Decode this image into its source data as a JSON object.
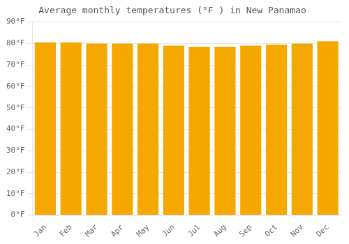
{
  "chart_data": {
    "type": "bar",
    "title": "Average monthly temperatures (°F ) in New Panamao",
    "categories": [
      "Jan",
      "Feb",
      "Mar",
      "Apr",
      "May",
      "Jun",
      "Jul",
      "Aug",
      "Sep",
      "Oct",
      "Nov",
      "Dec"
    ],
    "values": [
      80.5,
      80.5,
      80.0,
      80.0,
      80.0,
      79.0,
      78.5,
      78.5,
      79.0,
      79.5,
      80.0,
      81.0
    ],
    "color": "#F5A800",
    "ylim": [
      0,
      90
    ],
    "yticks": [
      {
        "value": 0,
        "label": "0°F"
      },
      {
        "value": 10,
        "label": "10°F"
      },
      {
        "value": 20,
        "label": "20°F"
      },
      {
        "value": 30,
        "label": "30°F"
      },
      {
        "value": 40,
        "label": "40°F"
      },
      {
        "value": 50,
        "label": "50°F"
      },
      {
        "value": 60,
        "label": "60°F"
      },
      {
        "value": 70,
        "label": "70°F"
      },
      {
        "value": 80,
        "label": "80°F"
      },
      {
        "value": 90,
        "label": "90°F"
      }
    ],
    "grid": true
  }
}
